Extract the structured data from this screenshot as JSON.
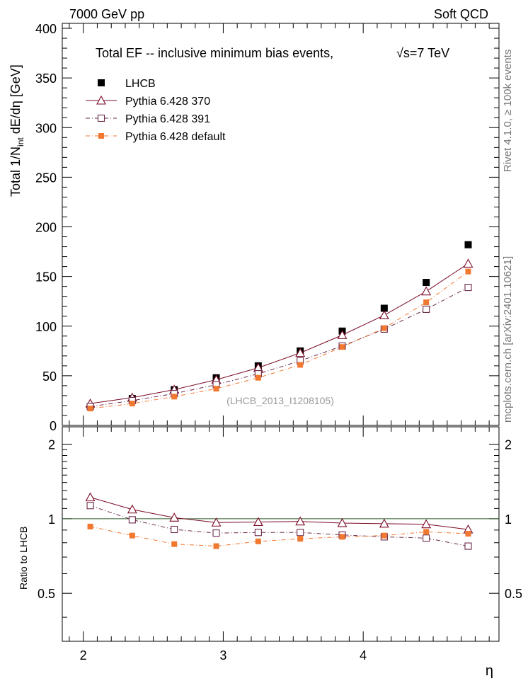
{
  "header": {
    "left": "7000 GeV pp",
    "right": "Soft QCD"
  },
  "side": {
    "rivet": "Rivet 4.1.0, ≥ 100k events",
    "mcplots": "mcplots.cern.ch [arXiv:2401.10621]"
  },
  "chart_data": [
    {
      "type": "scatter",
      "title": "Total EF -- inclusive minimum bias events,",
      "title_energy": "√s=7 TeV",
      "ylabel": "Total 1/N_int  dE/dη [GeV]",
      "ylabel_parts": {
        "main": "Total 1/N",
        "sub": "int",
        "tail": "  dE/dη [GeV]"
      },
      "xlim": [
        1.85,
        4.97
      ],
      "ylim": [
        0,
        405
      ],
      "yticks": [
        0,
        50,
        100,
        150,
        200,
        250,
        300,
        350,
        400
      ],
      "watermark": "(LHCB_2013_I1208105)",
      "x": [
        2.05,
        2.35,
        2.65,
        2.95,
        3.25,
        3.55,
        3.85,
        4.15,
        4.45,
        4.75
      ],
      "series": [
        {
          "name": "LHCB",
          "color": "#000000",
          "style": "data",
          "values": [
            19,
            27,
            36,
            48,
            60,
            75,
            95,
            118,
            144,
            182
          ]
        },
        {
          "name": "Pythia 6.428 370",
          "color": "#7a0a25",
          "style": "solid-triangle",
          "values": [
            22,
            28,
            36,
            46,
            58,
            73,
            91,
            111,
            135,
            163
          ]
        },
        {
          "name": "Pythia 6.428 391",
          "color": "#6b2b4a",
          "style": "dashdot-square",
          "values": [
            19,
            25,
            32,
            41,
            52,
            65,
            80,
            97,
            117,
            139
          ]
        },
        {
          "name": "Pythia 6.428 default",
          "color": "#f07830",
          "style": "dashdot-filledsquare",
          "values": [
            17,
            22,
            29,
            37,
            48,
            61,
            79,
            98,
            124,
            155
          ]
        }
      ]
    },
    {
      "type": "line",
      "ylabel": "Ratio to LHCB",
      "xlabel": "η",
      "xlim": [
        1.85,
        4.97
      ],
      "ylim": [
        0.32,
        2.35
      ],
      "yticks": [
        0.5,
        1,
        2
      ],
      "yticks_labels": [
        "0.5",
        "1",
        "2"
      ],
      "xticks": [
        2,
        3,
        4
      ],
      "x": [
        2.05,
        2.35,
        2.65,
        2.95,
        3.25,
        3.55,
        3.85,
        4.15,
        4.45,
        4.75
      ],
      "series": [
        {
          "name": "Pythia 6.428 370",
          "values": [
            1.22,
            1.09,
            1.01,
            0.965,
            0.97,
            0.975,
            0.96,
            0.955,
            0.95,
            0.905
          ]
        },
        {
          "name": "Pythia 6.428 391",
          "values": [
            1.13,
            0.99,
            0.905,
            0.875,
            0.88,
            0.88,
            0.86,
            0.845,
            0.835,
            0.775
          ]
        },
        {
          "name": "Pythia 6.428 default",
          "values": [
            0.93,
            0.855,
            0.79,
            0.775,
            0.81,
            0.83,
            0.845,
            0.855,
            0.885,
            0.87
          ]
        }
      ]
    }
  ]
}
